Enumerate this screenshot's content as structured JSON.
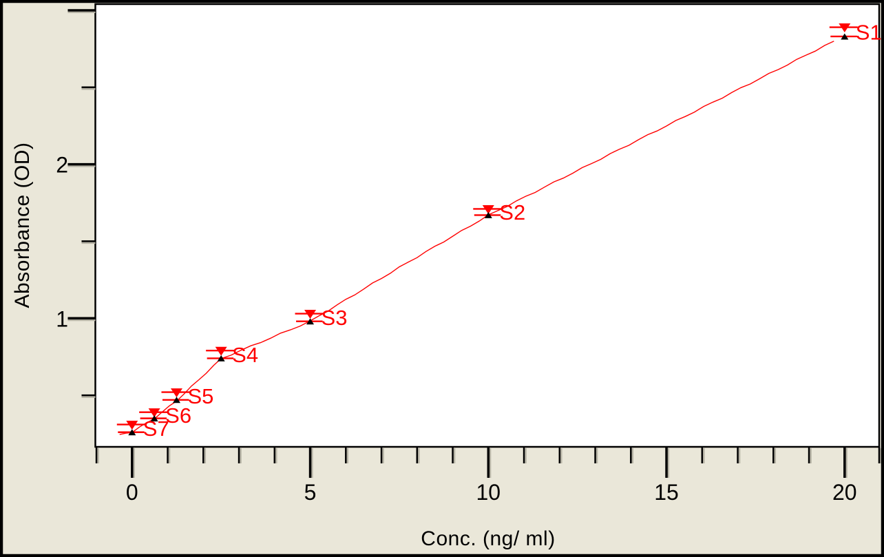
{
  "chart_data": {
    "type": "scatter",
    "title": "",
    "xlabel": "Conc. (ng/ ml)",
    "ylabel": "Absorbance (OD)",
    "xlim": [
      -1.03,
      20.97
    ],
    "ylim": [
      0.165,
      3.04
    ],
    "x_major_ticks": [
      0,
      5,
      10,
      15,
      20
    ],
    "x_major_tick_labels": [
      "0",
      "5",
      "10",
      "15",
      "20"
    ],
    "x_minor_ticks": [
      -1,
      1,
      2,
      3,
      4,
      6,
      7,
      8,
      9,
      11,
      12,
      13,
      14,
      16,
      17,
      18,
      19,
      21
    ],
    "y_major_ticks": [
      1,
      2,
      3
    ],
    "y_major_tick_labels": [
      "1",
      "2",
      ""
    ],
    "y_minor_ticks": [
      0.5,
      1.5,
      2.5
    ],
    "grid": false,
    "legend": false,
    "colors": {
      "background": "#eae7d9",
      "plot_background": "#ffffff",
      "frame": "#000000",
      "series_red": "#ff0000",
      "replicate_black": "#000000",
      "tick_shadow": "#b6b3a5"
    },
    "series_description": "ELISA standard curve: red inverted-triangle markers with error dashes (upper replicate), black upward markers (lower replicate), red fitted line through standards S1-S7",
    "standards": [
      {
        "label": "S1",
        "conc": 20,
        "od_high": 2.89,
        "od_low": 2.83
      },
      {
        "label": "S2",
        "conc": 10,
        "od_high": 1.71,
        "od_low": 1.67
      },
      {
        "label": "S3",
        "conc": 5,
        "od_high": 1.03,
        "od_low": 0.98
      },
      {
        "label": "S4",
        "conc": 2.5,
        "od_high": 0.79,
        "od_low": 0.74
      },
      {
        "label": "S5",
        "conc": 1.25,
        "od_high": 0.52,
        "od_low": 0.47
      },
      {
        "label": "S6",
        "conc": 0.625,
        "od_high": 0.39,
        "od_low": 0.35
      },
      {
        "label": "S7",
        "conc": 0,
        "od_high": 0.31,
        "od_low": 0.26
      }
    ],
    "fit_line": [
      [
        -0.35,
        0.245
      ],
      [
        0,
        0.262
      ],
      [
        0.625,
        0.35
      ],
      [
        1.25,
        0.465
      ],
      [
        2.5,
        0.737
      ],
      [
        5,
        0.98
      ],
      [
        7.5,
        1.33
      ],
      [
        10,
        1.668
      ],
      [
        15,
        2.25
      ],
      [
        19.7,
        2.8
      ]
    ]
  }
}
